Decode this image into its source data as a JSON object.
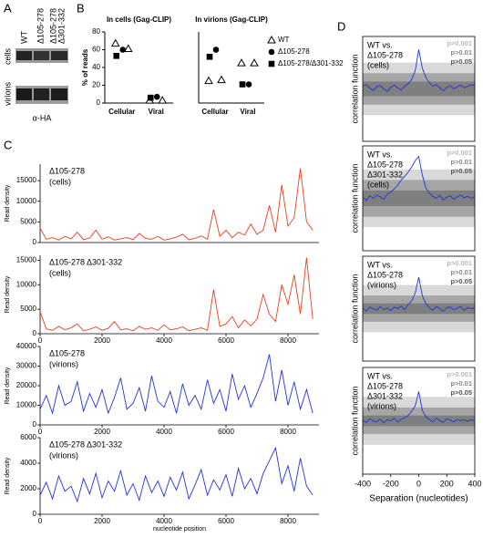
{
  "panel_labels": [
    "A",
    "B",
    "C",
    "D"
  ],
  "blot": {
    "lane_labels": [
      [
        "WT"
      ],
      [
        "Δ105-278"
      ],
      [
        "Δ105-278",
        "Δ301-332"
      ]
    ],
    "row_labels": [
      "cells",
      "virions"
    ],
    "antibody": "α-HA"
  },
  "chart_data": [
    {
      "type": "dot",
      "title": "In cells (Gag-CLIP)",
      "ylabel": "% of reads",
      "categories": [
        "Cellular",
        "Viral"
      ],
      "ylim": [
        0,
        80
      ],
      "yticks": [
        0,
        20,
        40,
        60,
        80
      ],
      "series": [
        {
          "marker": "triangle",
          "color": "#000000",
          "values": [
            [
              67,
              61
            ],
            [
              3,
              3
            ]
          ]
        },
        {
          "marker": "circle",
          "color": "#000000",
          "values": [
            [
              60
            ],
            [
              7
            ]
          ]
        },
        {
          "marker": "square",
          "color": "#000000",
          "values": [
            [
              53
            ],
            [
              6
            ]
          ]
        }
      ]
    },
    {
      "type": "dot",
      "title": "In virions (Gag-CLIP)",
      "categories": [
        "Cellular",
        "Viral"
      ],
      "ylim": [
        0,
        80
      ],
      "series": [
        {
          "name": "WT",
          "marker": "triangle",
          "color": "#000000",
          "values": [
            [
              25,
              26
            ],
            [
              45,
              45
            ]
          ]
        },
        {
          "name": "Δ105-278",
          "marker": "circle",
          "color": "#000000",
          "values": [
            [
              60
            ],
            [
              21
            ]
          ]
        },
        {
          "name": "Δ105-278/Δ301-332",
          "marker": "square",
          "color": "#000000",
          "values": [
            [
              52
            ],
            [
              21
            ]
          ]
        }
      ]
    },
    {
      "type": "line",
      "label_lines": [
        "Δ105-278",
        "(cells)"
      ],
      "ylabel": "Read density",
      "x": [
        0,
        200,
        400,
        600,
        800,
        1000,
        1200,
        1400,
        1600,
        1800,
        2000,
        2200,
        2400,
        2600,
        2800,
        3000,
        3200,
        3400,
        3600,
        3800,
        4000,
        4200,
        4400,
        4600,
        4800,
        5000,
        5200,
        5400,
        5600,
        5800,
        6000,
        6200,
        6400,
        6600,
        6800,
        7000,
        7200,
        7400,
        7600,
        7800,
        8000,
        8200,
        8400,
        8600,
        8800
      ],
      "xlim": [
        0,
        9000
      ],
      "ylim": [
        0,
        19000
      ],
      "yticks": [
        0,
        5000,
        10000,
        15000
      ],
      "series": [
        {
          "color": "#e8401c",
          "values": [
            3500,
            800,
            1200,
            600,
            1500,
            900,
            2500,
            700,
            1100,
            3000,
            800,
            1400,
            600,
            900,
            1200,
            700,
            2200,
            1000,
            800,
            1500,
            600,
            900,
            1300,
            2000,
            700,
            1000,
            1600,
            800,
            8000,
            1500,
            3000,
            1200,
            2500,
            1800,
            4500,
            2000,
            3000,
            9000,
            2500,
            14000,
            4000,
            6000,
            18000,
            5000,
            3000
          ]
        }
      ]
    },
    {
      "type": "line",
      "label_lines": [
        "Δ105-278 Δ301-332",
        "(cells)"
      ],
      "ylabel": "Read density",
      "x": [
        0,
        200,
        400,
        600,
        800,
        1000,
        1200,
        1400,
        1600,
        1800,
        2000,
        2200,
        2400,
        2600,
        2800,
        3000,
        3200,
        3400,
        3600,
        3800,
        4000,
        4200,
        4400,
        4600,
        4800,
        5000,
        5200,
        5400,
        5600,
        5800,
        6000,
        6200,
        6400,
        6600,
        6800,
        7000,
        7200,
        7400,
        7600,
        7800,
        8000,
        8200,
        8400,
        8600,
        8800
      ],
      "xlim": [
        0,
        9000
      ],
      "xticks": [
        0,
        2000,
        4000,
        6000,
        8000
      ],
      "ylim": [
        0,
        16000
      ],
      "yticks": [
        0,
        5000,
        10000,
        15000
      ],
      "series": [
        {
          "color": "#e8401c",
          "values": [
            4500,
            1000,
            700,
            1500,
            800,
            1200,
            2000,
            600,
            900,
            1400,
            700,
            1100,
            2500,
            800,
            1000,
            600,
            1500,
            900,
            1200,
            700,
            1800,
            800,
            1000,
            1400,
            600,
            900,
            1200,
            700,
            9000,
            1500,
            2000,
            3500,
            1200,
            2800,
            1600,
            3000,
            8000,
            4000,
            2500,
            10000,
            6000,
            12000,
            4000,
            15500,
            3000
          ]
        }
      ]
    },
    {
      "type": "line",
      "label_lines": [
        "Δ105-278",
        "(virions)"
      ],
      "ylabel": "Read density",
      "x": [
        0,
        200,
        400,
        600,
        800,
        1000,
        1200,
        1400,
        1600,
        1800,
        2000,
        2200,
        2400,
        2600,
        2800,
        3000,
        3200,
        3400,
        3600,
        3800,
        4000,
        4200,
        4400,
        4600,
        4800,
        5000,
        5200,
        5400,
        5600,
        5800,
        6000,
        6200,
        6400,
        6600,
        6800,
        7000,
        7200,
        7400,
        7600,
        7800,
        8000,
        8200,
        8400,
        8600,
        8800
      ],
      "xlim": [
        0,
        9000
      ],
      "xticks": [
        0,
        2000,
        4000,
        6000,
        8000
      ],
      "ylim": [
        0,
        40000
      ],
      "yticks": [
        0,
        10000,
        20000,
        30000,
        40000
      ],
      "series": [
        {
          "color": "#2233dd",
          "values": [
            8000,
            15000,
            6000,
            20000,
            10000,
            12000,
            22000,
            7000,
            16000,
            9000,
            18000,
            6000,
            14000,
            24000,
            8000,
            11000,
            19000,
            7000,
            25000,
            12000,
            9000,
            17000,
            6000,
            21000,
            10000,
            15000,
            8000,
            23000,
            11000,
            18000,
            7000,
            26000,
            13000,
            20000,
            9000,
            16000,
            24000,
            36000,
            12000,
            28000,
            10000,
            22000,
            8000,
            18000,
            6000
          ]
        }
      ]
    },
    {
      "type": "line",
      "label_lines": [
        "Δ105-278 Δ301-332",
        "(virions)"
      ],
      "ylabel": "Read density",
      "xlabel": "nucleotide position",
      "x": [
        0,
        200,
        400,
        600,
        800,
        1000,
        1200,
        1400,
        1600,
        1800,
        2000,
        2200,
        2400,
        2600,
        2800,
        3000,
        3200,
        3400,
        3600,
        3800,
        4000,
        4200,
        4400,
        4600,
        4800,
        5000,
        5200,
        5400,
        5600,
        5800,
        6000,
        6200,
        6400,
        6600,
        6800,
        7000,
        7200,
        7400,
        7600,
        7800,
        8000,
        8200,
        8400,
        8600,
        8800
      ],
      "xlim": [
        0,
        9000
      ],
      "xticks": [
        0,
        2000,
        4000,
        6000,
        8000
      ],
      "ylim": [
        0,
        6000
      ],
      "yticks": [
        0,
        2000,
        4000,
        6000
      ],
      "series": [
        {
          "color": "#2233dd",
          "values": [
            1500,
            2500,
            1200,
            3000,
            1800,
            2200,
            1000,
            2800,
            1600,
            3200,
            1300,
            2600,
            1800,
            3400,
            1500,
            2400,
            1100,
            3000,
            1700,
            2600,
            1400,
            2900,
            1900,
            3300,
            1200,
            2300,
            3500,
            1500,
            2700,
            1900,
            3100,
            1400,
            3600,
            2000,
            2800,
            1600,
            3200,
            4200,
            5200,
            2400,
            3800,
            1800,
            4400,
            2200,
            1500
          ]
        }
      ]
    },
    {
      "type": "line",
      "label_lines": [
        "WT vs.",
        "Δ105-278",
        "(cells)"
      ],
      "ylabel": "correlation function",
      "x": [
        -400,
        -375,
        -350,
        -325,
        -300,
        -275,
        -250,
        -225,
        -200,
        -175,
        -150,
        -125,
        -100,
        -75,
        -50,
        -25,
        0,
        25,
        50,
        75,
        100,
        125,
        150,
        175,
        200,
        225,
        250,
        275,
        300,
        325,
        350,
        375,
        400
      ],
      "xlim": [
        -400,
        400
      ],
      "ylim": [
        -1,
        1
      ],
      "bands": [
        {
          "name": "p>0.001",
          "color": "#d9d9d9",
          "lower": -0.5,
          "upper": 0.5
        },
        {
          "name": "p>0.01",
          "color": "#a6a6a6",
          "lower": -0.3,
          "upper": 0.3
        },
        {
          "name": "p>0.05",
          "color": "#7f7f7f",
          "lower": -0.14,
          "upper": 0.14
        }
      ],
      "series": [
        {
          "color": "#2233dd",
          "values": [
            0.05,
            0.08,
            0.02,
            -0.03,
            0.04,
            0.06,
            0.0,
            -0.05,
            0.03,
            0.07,
            0.02,
            -0.02,
            0.05,
            0.1,
            0.18,
            0.35,
            0.75,
            0.4,
            0.22,
            0.12,
            0.05,
            0.08,
            0.02,
            -0.04,
            0.03,
            0.06,
            0.0,
            0.04,
            0.07,
            0.02,
            0.05,
            0.08,
            0.06
          ]
        }
      ]
    },
    {
      "type": "line",
      "label_lines": [
        "WT vs.",
        "Δ105-278",
        "Δ301-332",
        "(cells)"
      ],
      "ylabel": "correlation function",
      "x": [
        -400,
        -375,
        -350,
        -325,
        -300,
        -275,
        -250,
        -225,
        -200,
        -175,
        -150,
        -125,
        -100,
        -75,
        -50,
        -25,
        0,
        25,
        50,
        75,
        100,
        125,
        150,
        175,
        200,
        225,
        250,
        275,
        300,
        325,
        350,
        375,
        400
      ],
      "xlim": [
        -400,
        400
      ],
      "ylim": [
        -1,
        1
      ],
      "bands": [
        {
          "name": "p>0.001",
          "color": "#d9d9d9",
          "lower": -0.55,
          "upper": 0.55
        },
        {
          "name": "p>0.01",
          "color": "#a6a6a6",
          "lower": -0.35,
          "upper": 0.35
        },
        {
          "name": "p>0.05",
          "color": "#7f7f7f",
          "lower": -0.15,
          "upper": 0.15
        }
      ],
      "series": [
        {
          "color": "#2233dd",
          "values": [
            0.02,
            -0.04,
            0.05,
            0.0,
            0.06,
            0.03,
            -0.02,
            0.08,
            0.12,
            0.18,
            0.25,
            0.35,
            0.42,
            0.5,
            0.6,
            0.72,
            0.8,
            0.45,
            0.2,
            0.1,
            0.04,
            0.0,
            0.06,
            -0.03,
            0.02,
            0.05,
            -0.02,
            0.03,
            0.06,
            0.01,
            0.04,
            0.0,
            0.03
          ]
        }
      ]
    },
    {
      "type": "line",
      "label_lines": [
        "WT vs.",
        "Δ105-278",
        "(virions)"
      ],
      "ylabel": "correlation function",
      "x": [
        -400,
        -375,
        -350,
        -325,
        -300,
        -275,
        -250,
        -225,
        -200,
        -175,
        -150,
        -125,
        -100,
        -75,
        -50,
        -25,
        0,
        25,
        50,
        75,
        100,
        125,
        150,
        175,
        200,
        225,
        250,
        275,
        300,
        325,
        350,
        375,
        400
      ],
      "xlim": [
        -400,
        400
      ],
      "ylim": [
        -1,
        1
      ],
      "bands": [
        {
          "name": "p>0.001",
          "color": "#d9d9d9",
          "lower": -0.45,
          "upper": 0.45
        },
        {
          "name": "p>0.01",
          "color": "#a6a6a6",
          "lower": -0.25,
          "upper": 0.25
        },
        {
          "name": "p>0.05",
          "color": "#7f7f7f",
          "lower": -0.1,
          "upper": 0.1
        }
      ],
      "series": [
        {
          "color": "#2233dd",
          "values": [
            0.02,
            -0.05,
            0.03,
            0.0,
            -0.03,
            0.04,
            -0.02,
            0.01,
            -0.04,
            0.03,
            0.0,
            0.05,
            -0.02,
            0.08,
            0.15,
            0.3,
            0.6,
            0.25,
            0.1,
            0.02,
            -0.03,
            0.04,
            0.0,
            -0.05,
            0.02,
            0.03,
            -0.02,
            0.01,
            0.04,
            -0.03,
            0.02,
            0.0,
            0.01
          ]
        }
      ]
    },
    {
      "type": "line",
      "label_lines": [
        "WT vs.",
        "Δ105-278",
        "Δ301-332",
        "(virions)"
      ],
      "ylabel": "correlation function",
      "xlabel": "Separation (nucleotides)",
      "x": [
        -400,
        -375,
        -350,
        -325,
        -300,
        -275,
        -250,
        -225,
        -200,
        -175,
        -150,
        -125,
        -100,
        -75,
        -50,
        -25,
        0,
        25,
        50,
        75,
        100,
        125,
        150,
        175,
        200,
        225,
        250,
        275,
        300,
        325,
        350,
        375,
        400
      ],
      "xlim": [
        -400,
        400
      ],
      "xticks": [
        -400,
        -200,
        0,
        200,
        400
      ],
      "ylim": [
        -1,
        1
      ],
      "bands": [
        {
          "name": "p>0.001",
          "color": "#d9d9d9",
          "lower": -0.45,
          "upper": 0.45
        },
        {
          "name": "p>0.01",
          "color": "#a6a6a6",
          "lower": -0.25,
          "upper": 0.25
        },
        {
          "name": "p>0.05",
          "color": "#7f7f7f",
          "lower": -0.1,
          "upper": 0.1
        }
      ],
      "series": [
        {
          "color": "#2233dd",
          "values": [
            0.01,
            -0.03,
            0.04,
            0.0,
            -0.02,
            0.03,
            -0.04,
            0.02,
            0.0,
            0.05,
            -0.02,
            0.03,
            0.06,
            0.1,
            0.18,
            0.28,
            0.55,
            0.2,
            0.08,
            0.03,
            -0.02,
            0.05,
            0.0,
            -0.03,
            0.04,
            0.01,
            -0.02,
            0.03,
            0.0,
            0.02,
            -0.01,
            0.02,
            0.0
          ]
        }
      ]
    }
  ]
}
